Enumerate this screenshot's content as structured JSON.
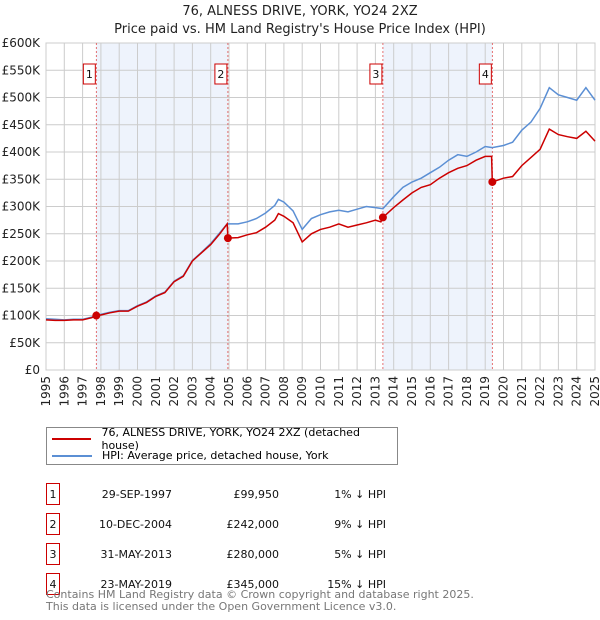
{
  "header": {
    "title": "76, ALNESS DRIVE, YORK, YO24 2XZ",
    "subtitle": "Price paid vs. HM Land Registry's House Price Index (HPI)"
  },
  "chart_data": {
    "type": "line",
    "title": "76, ALNESS DRIVE, YORK, YO24 2XZ",
    "subtitle": "Price paid vs. HM Land Registry's House Price Index (HPI)",
    "xlim": [
      1995,
      2025
    ],
    "ylim": [
      0,
      600000
    ],
    "grid": true,
    "x_ticks": [
      "1995",
      "1996",
      "1997",
      "1998",
      "1999",
      "2000",
      "2001",
      "2002",
      "2003",
      "2004",
      "2005",
      "2006",
      "2007",
      "2008",
      "2009",
      "2010",
      "2011",
      "2012",
      "2013",
      "2014",
      "2015",
      "2016",
      "2017",
      "2018",
      "2019",
      "2020",
      "2021",
      "2022",
      "2023",
      "2024",
      "2025"
    ],
    "y_ticks": [
      {
        "v": 0,
        "label": "£0"
      },
      {
        "v": 50000,
        "label": "£50K"
      },
      {
        "v": 100000,
        "label": "£100K"
      },
      {
        "v": 150000,
        "label": "£150K"
      },
      {
        "v": 200000,
        "label": "£200K"
      },
      {
        "v": 250000,
        "label": "£250K"
      },
      {
        "v": 300000,
        "label": "£300K"
      },
      {
        "v": 350000,
        "label": "£350K"
      },
      {
        "v": 400000,
        "label": "£400K"
      },
      {
        "v": 450000,
        "label": "£450K"
      },
      {
        "v": 500000,
        "label": "£500K"
      },
      {
        "v": 550000,
        "label": "£550K"
      },
      {
        "v": 600000,
        "label": "£600K"
      }
    ],
    "colors": {
      "property": "#cc0000",
      "hpi": "#5b8fd4",
      "band": "#eef3fc",
      "vline": "#e05050"
    },
    "series": [
      {
        "name": "76, ALNESS DRIVE, YORK, YO24 2XZ (detached house)",
        "color": "#cc0000",
        "x": [
          1995,
          1995.5,
          1996,
          1996.5,
          1997,
          1997.5,
          1997.75,
          1998,
          1998.5,
          1999,
          1999.5,
          2000,
          2000.5,
          2001,
          2001.5,
          2002,
          2002.5,
          2003,
          2003.5,
          2004,
          2004.5,
          2004.9,
          2004.94,
          2005.5,
          2006,
          2006.5,
          2007,
          2007.5,
          2007.7,
          2008,
          2008.5,
          2009,
          2009.5,
          2010,
          2010.5,
          2011,
          2011.5,
          2012,
          2012.5,
          2013,
          2013.3,
          2013.41,
          2014,
          2014.5,
          2015,
          2015.5,
          2016,
          2016.5,
          2017,
          2017.5,
          2018,
          2018.5,
          2019,
          2019.35,
          2019.39,
          2020,
          2020.5,
          2021,
          2021.5,
          2022,
          2022.5,
          2023,
          2023.5,
          2024,
          2024.5,
          2025
        ],
        "y": [
          92000,
          91000,
          91000,
          92000,
          92000,
          96000,
          99950,
          101000,
          105000,
          108000,
          108000,
          117000,
          124000,
          135000,
          142000,
          162000,
          172000,
          200000,
          215000,
          230000,
          250000,
          268000,
          242000,
          243000,
          248000,
          252000,
          262000,
          275000,
          287000,
          282000,
          270000,
          235000,
          250000,
          258000,
          262000,
          268000,
          262000,
          266000,
          270000,
          275000,
          272000,
          280000,
          298000,
          312000,
          325000,
          335000,
          340000,
          352000,
          362000,
          370000,
          375000,
          385000,
          392000,
          392000,
          345000,
          352000,
          355000,
          375000,
          390000,
          405000,
          442000,
          432000,
          428000,
          425000,
          438000,
          420000
        ]
      },
      {
        "name": "HPI: Average price, detached house, York",
        "color": "#5b8fd4",
        "x": [
          1995,
          1995.5,
          1996,
          1996.5,
          1997,
          1997.5,
          1997.75,
          1998,
          1998.5,
          1999,
          1999.5,
          2000,
          2000.5,
          2001,
          2001.5,
          2002,
          2002.5,
          2003,
          2003.5,
          2004,
          2004.5,
          2004.9,
          2005.5,
          2006,
          2006.5,
          2007,
          2007.5,
          2007.7,
          2008,
          2008.5,
          2009,
          2009.5,
          2010,
          2010.5,
          2011,
          2011.5,
          2012,
          2012.5,
          2013,
          2013.41,
          2014,
          2014.5,
          2015,
          2015.5,
          2016,
          2016.5,
          2017,
          2017.5,
          2018,
          2018.5,
          2019,
          2019.39,
          2020,
          2020.5,
          2021,
          2021.5,
          2022,
          2022.5,
          2023,
          2023.5,
          2024,
          2024.5,
          2025
        ],
        "y": [
          94000,
          93000,
          92000,
          93000,
          93000,
          97000,
          101000,
          102000,
          106000,
          109000,
          109000,
          118000,
          125000,
          136000,
          143000,
          163000,
          173000,
          201000,
          216000,
          232000,
          252000,
          268000,
          268000,
          272000,
          278000,
          288000,
          302000,
          313000,
          308000,
          292000,
          258000,
          278000,
          285000,
          290000,
          293000,
          290000,
          295000,
          300000,
          298000,
          296000,
          318000,
          335000,
          345000,
          352000,
          362000,
          372000,
          385000,
          395000,
          392000,
          400000,
          410000,
          408000,
          412000,
          418000,
          440000,
          455000,
          480000,
          518000,
          505000,
          500000,
          495000,
          518000,
          495000
        ]
      }
    ],
    "transactions": [
      {
        "num": "1",
        "x": 1997.75,
        "date": "29-SEP-1997",
        "price": "£99,950",
        "value": 99950,
        "hpi": "1% ↓ HPI"
      },
      {
        "num": "2",
        "x": 2004.94,
        "date": "10-DEC-2004",
        "price": "£242,000",
        "value": 242000,
        "hpi": "9% ↓ HPI"
      },
      {
        "num": "3",
        "x": 2013.41,
        "date": "31-MAY-2013",
        "price": "£280,000",
        "value": 280000,
        "hpi": "5% ↓ HPI"
      },
      {
        "num": "4",
        "x": 2019.39,
        "date": "23-MAY-2019",
        "price": "£345,000",
        "value": 345000,
        "hpi": "15% ↓ HPI"
      }
    ],
    "bands": [
      [
        1997.75,
        2004.94
      ],
      [
        2013.41,
        2019.39
      ]
    ]
  },
  "legend": {
    "property": "76, ALNESS DRIVE, YORK, YO24 2XZ (detached house)",
    "hpi": "HPI: Average price, detached house, York"
  },
  "footer": {
    "line1": "Contains HM Land Registry data © Crown copyright and database right 2025.",
    "line2": "This data is licensed under the Open Government Licence v3.0."
  }
}
